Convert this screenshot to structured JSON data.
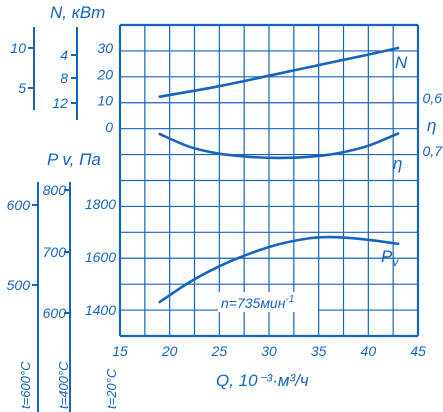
{
  "axes": {
    "n_title": "N, кВт",
    "p_title": "P v, Па",
    "eta_title": "η",
    "x_title": "Q, 10⁻³·м³/ч"
  },
  "labels": {
    "n": "N",
    "eta": "η",
    "pv_main": "P",
    "pv_sub": "v"
  },
  "annotation": {
    "speed_main": "n=735мин",
    "speed_exp": "-1"
  },
  "temperatures": {
    "t600": "t=600°C",
    "t400": "t=400°C",
    "t20": "t=20°C"
  },
  "scales": {
    "q_ticks": [
      "15",
      "20",
      "25",
      "30",
      "35",
      "40",
      "45"
    ],
    "n_ticks": [
      "0",
      "10",
      "20",
      "30"
    ],
    "eta_ticks": [
      "0,7",
      "0,6"
    ],
    "p20_ticks": [
      "1400",
      "1600",
      "1800"
    ],
    "p400_ticks": [
      "600",
      "700",
      "800"
    ],
    "p600_ticks": [
      "500",
      "600"
    ],
    "n_outer_ticks": [
      "4",
      "8",
      "12"
    ],
    "n_inner_ticks": [
      "5",
      "10"
    ]
  },
  "chart_data": {
    "type": "line",
    "title": "",
    "xlabel": "Q, 10⁻³·м³/ч",
    "xlim": [
      15,
      45
    ],
    "x_ticks": [
      15,
      20,
      25,
      30,
      35,
      40,
      45
    ],
    "grid": true,
    "legend": "none",
    "annotation": "n=735мин⁻¹",
    "series": [
      {
        "name": "N",
        "unit": "кВт",
        "ylim": [
          0,
          30
        ],
        "x": [
          19,
          25,
          30,
          35,
          40,
          43
        ],
        "values": [
          11.5,
          15.5,
          19.5,
          23.5,
          27.5,
          30
        ]
      },
      {
        "name": "η",
        "ylim": [
          0.55,
          0.75
        ],
        "x": [
          19,
          22,
          25,
          28,
          31,
          34,
          37,
          40,
          43
        ],
        "values": [
          0.668,
          0.692,
          0.705,
          0.711,
          0.713,
          0.711,
          0.704,
          0.69,
          0.667
        ]
      },
      {
        "name": "P v",
        "unit": "Па",
        "ylim": [
          1300,
          1900
        ],
        "x": [
          19,
          22,
          25,
          28,
          31,
          34,
          36,
          38,
          40,
          43
        ],
        "values": [
          1430,
          1505,
          1565,
          1612,
          1648,
          1670,
          1675,
          1672,
          1665,
          1650
        ]
      }
    ]
  }
}
